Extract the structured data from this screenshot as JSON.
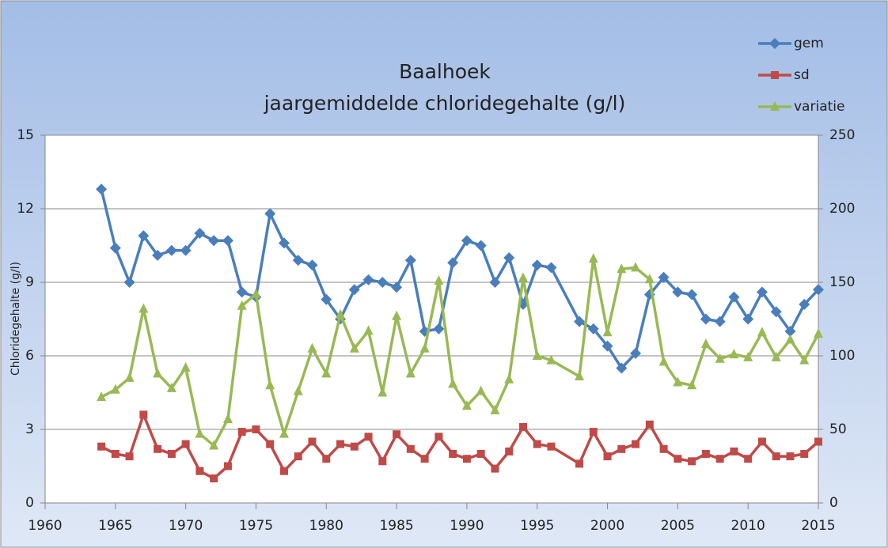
{
  "chart_data": {
    "type": "line",
    "title": "Baalhoek",
    "subtitle": "jaargemiddelde chloridegehalte (g/l)",
    "ylabel": "Chloridegehalte (g/l)",
    "x": [
      1964,
      1965,
      1966,
      1967,
      1968,
      1969,
      1970,
      1971,
      1972,
      1973,
      1974,
      1975,
      1976,
      1977,
      1978,
      1979,
      1980,
      1981,
      1982,
      1983,
      1984,
      1985,
      1986,
      1987,
      1988,
      1989,
      1990,
      1991,
      1992,
      1993,
      1994,
      1995,
      1996,
      1998,
      1999,
      2000,
      2001,
      2002,
      2003,
      2004,
      2005,
      2006,
      2007,
      2008,
      2009,
      2010,
      2011,
      2012,
      2013,
      2014,
      2015
    ],
    "series": [
      {
        "name": "gem",
        "color": "#4a7ebb",
        "marker": "diamond",
        "values": [
          12.8,
          10.4,
          9.0,
          10.9,
          10.1,
          10.3,
          10.3,
          11.0,
          10.7,
          10.7,
          8.6,
          8.4,
          11.8,
          10.6,
          9.9,
          9.7,
          8.3,
          7.5,
          8.7,
          9.1,
          9.0,
          8.8,
          9.9,
          7.0,
          7.1,
          9.8,
          10.7,
          10.5,
          9.0,
          10.0,
          8.1,
          9.7,
          9.6,
          7.4,
          7.1,
          6.4,
          5.5,
          6.1,
          8.5,
          9.2,
          8.6,
          8.5,
          7.5,
          7.4,
          8.4,
          7.5,
          8.6,
          7.8,
          7.0,
          8.1,
          8.7
        ]
      },
      {
        "name": "sd",
        "color": "#be4b48",
        "marker": "square",
        "values": [
          2.3,
          2.0,
          1.9,
          3.6,
          2.2,
          2.0,
          2.4,
          1.3,
          1.0,
          1.5,
          2.9,
          3.0,
          2.4,
          1.3,
          1.9,
          2.5,
          1.8,
          2.4,
          2.3,
          2.7,
          1.7,
          2.8,
          2.2,
          1.8,
          2.7,
          2.0,
          1.8,
          2.0,
          1.4,
          2.1,
          3.1,
          2.4,
          2.3,
          1.6,
          2.9,
          1.9,
          2.2,
          2.4,
          3.2,
          2.2,
          1.8,
          1.7,
          2.0,
          1.8,
          2.1,
          1.8,
          2.5,
          1.9,
          1.9,
          2.0,
          2.5
        ]
      },
      {
        "name": "variatie",
        "color": "#98b954",
        "marker": "triangle",
        "axis": "y2",
        "values": [
          72,
          77,
          85,
          132,
          88,
          78,
          92,
          47,
          39,
          57,
          134,
          142,
          80,
          47,
          76,
          105,
          88,
          128,
          105,
          117,
          75,
          127,
          88,
          105,
          151,
          81,
          66,
          76,
          63,
          84,
          153,
          100,
          97,
          86,
          166,
          116,
          159,
          160,
          152,
          96,
          82,
          80,
          108,
          98,
          101,
          99,
          116,
          99,
          111,
          97,
          115
        ]
      }
    ],
    "xlim": [
      1960,
      2015
    ],
    "xticks": [
      1960,
      1965,
      1970,
      1975,
      1980,
      1985,
      1990,
      1995,
      2000,
      2005,
      2010,
      2015
    ],
    "ylim": [
      0,
      15
    ],
    "yticks": [
      0,
      3,
      6,
      9,
      12,
      15
    ],
    "y2lim": [
      0,
      250
    ],
    "y2ticks": [
      0,
      50,
      100,
      150,
      200,
      250
    ],
    "grid": true,
    "legend": "top-right"
  }
}
